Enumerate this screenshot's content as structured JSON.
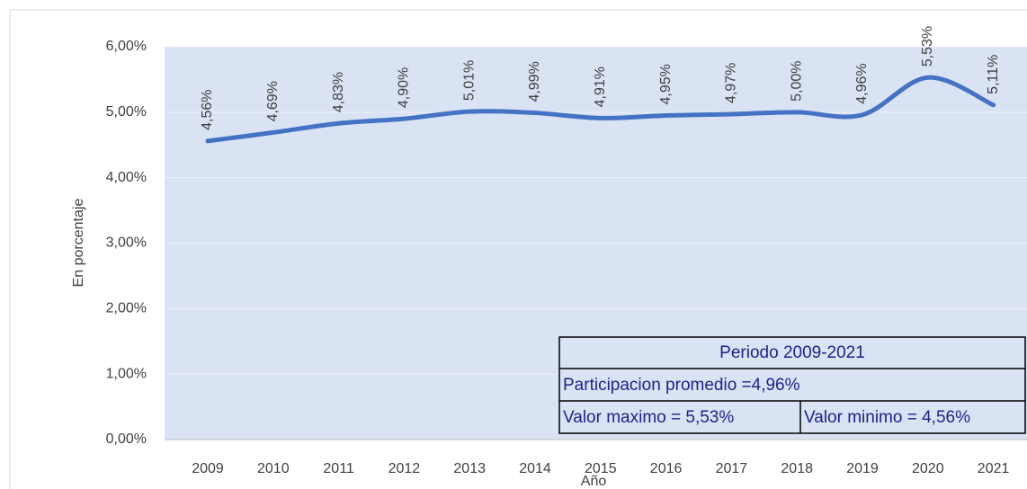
{
  "chart_data": {
    "type": "line",
    "x_label": "Año",
    "y_label": "En porcentaje",
    "categories": [
      "2009",
      "2010",
      "2011",
      "2012",
      "2013",
      "2014",
      "2015",
      "2016",
      "2017",
      "2018",
      "2019",
      "2020",
      "2021"
    ],
    "series": [
      {
        "name": "Participacion",
        "color": "#4472c4",
        "values": [
          4.56,
          4.69,
          4.83,
          4.9,
          5.01,
          4.99,
          4.91,
          4.95,
          4.97,
          5.0,
          4.96,
          5.53,
          5.11
        ],
        "value_labels": [
          "4,56%",
          "4,69%",
          "4,83%",
          "4,90%",
          "5,01%",
          "4,99%",
          "4,91%",
          "4,95%",
          "4,97%",
          "5,00%",
          "4,96%",
          "5,53%",
          "5,11%"
        ]
      }
    ],
    "ylim": [
      0,
      6
    ],
    "yticks": [
      {
        "value": 0,
        "label": "0,00%"
      },
      {
        "value": 1,
        "label": "1,00%"
      },
      {
        "value": 2,
        "label": "2,00%"
      },
      {
        "value": 3,
        "label": "3,00%"
      },
      {
        "value": 4,
        "label": "4,00%"
      },
      {
        "value": 5,
        "label": "5,00%"
      },
      {
        "value": 6,
        "label": "6,00%"
      }
    ],
    "grid": true,
    "annotations": [
      "Periodo 2009-2021",
      "Participacion promedio =4,96%",
      "Valor maximo = 5,53%",
      "Valor minimo = 4,56%"
    ]
  }
}
